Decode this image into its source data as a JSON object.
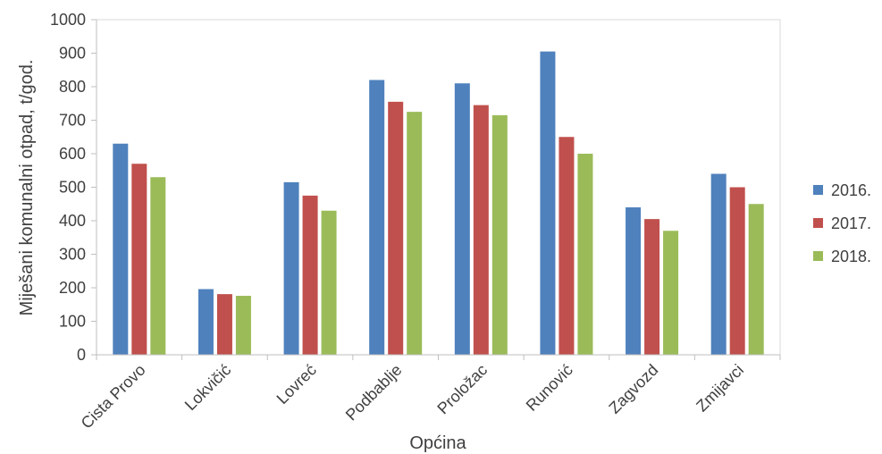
{
  "chart_data": {
    "type": "bar",
    "title": "",
    "xlabel": "Općina",
    "ylabel": "Miješani komunalni otpad, t/god.",
    "ylim": [
      0,
      1000
    ],
    "yticks": [
      0,
      100,
      200,
      300,
      400,
      500,
      600,
      700,
      800,
      900,
      1000
    ],
    "categories": [
      "Cista Provo",
      "Lokvičić",
      "Lovreć",
      "Podbablje",
      "Proložac",
      "Runović",
      "Zagvozd",
      "Zmijavci"
    ],
    "series": [
      {
        "name": "2016.",
        "color": "#4f81bd",
        "values": [
          630,
          196,
          515,
          820,
          810,
          905,
          440,
          540
        ]
      },
      {
        "name": "2017.",
        "color": "#c0504d",
        "values": [
          570,
          181,
          475,
          755,
          745,
          650,
          405,
          500
        ]
      },
      {
        "name": "2018.",
        "color": "#9bbb59",
        "values": [
          530,
          176,
          430,
          725,
          715,
          600,
          370,
          450
        ]
      }
    ],
    "grid": false,
    "legend_position": "right"
  }
}
